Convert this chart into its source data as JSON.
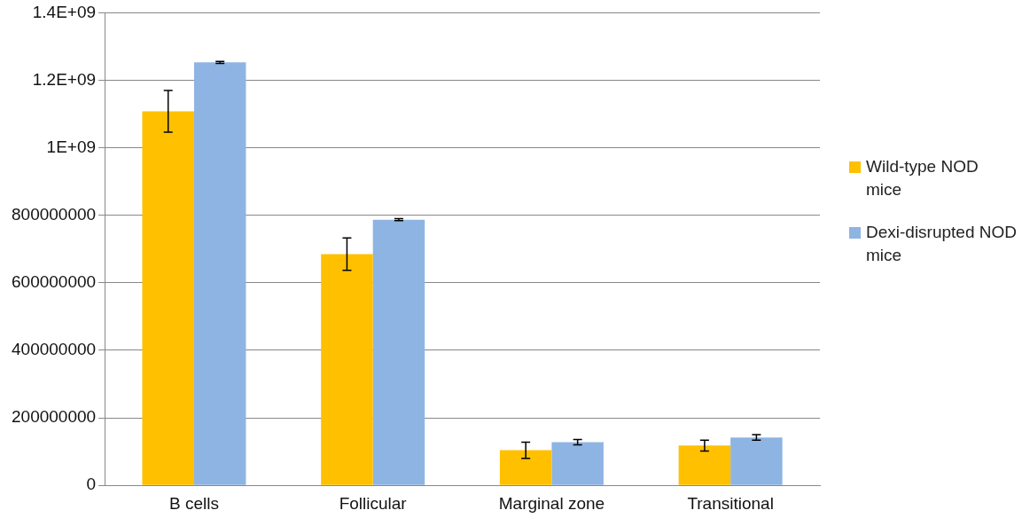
{
  "chart_data": {
    "type": "bar",
    "categories": [
      "B cells",
      "Follicular",
      "Marginal zone",
      "Transitional"
    ],
    "series": [
      {
        "name": "Wild-type NOD mice",
        "color": "#ffc000",
        "values": [
          1108000000,
          685000000,
          104000000,
          118000000
        ],
        "errors": [
          62000000,
          48000000,
          24000000,
          16000000
        ]
      },
      {
        "name": "Dexi-disrupted NOD mice",
        "color": "#8eb4e3",
        "values": [
          1253000000,
          787000000,
          128000000,
          142000000
        ],
        "errors": [
          3000000,
          3000000,
          8000000,
          8000000
        ]
      }
    ],
    "ylim": [
      0,
      1400000000
    ],
    "yticks": [
      0,
      200000000,
      400000000,
      600000000,
      800000000,
      {
        "value": 1000000000,
        "label": "1E+09"
      },
      {
        "value": 1200000000,
        "label": "1.2E+09"
      },
      {
        "value": 1400000000,
        "label": "1.4E+09"
      }
    ],
    "grid": "y",
    "legend": "right"
  }
}
